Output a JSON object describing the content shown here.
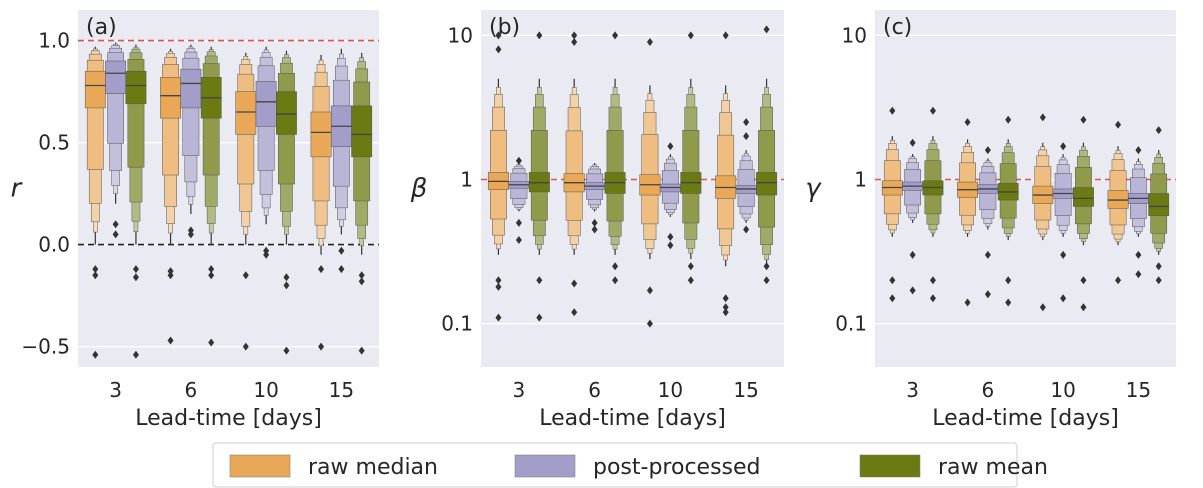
{
  "chart_data": [
    {
      "type": "boxen",
      "panel_label": "(a)",
      "ylabel": "r",
      "xlabel": "Lead-time [days]",
      "categories": [
        "3",
        "6",
        "10",
        "15"
      ],
      "yscale": "linear",
      "ylim": [
        -0.6,
        1.15
      ],
      "yticks": [
        -0.5,
        0.0,
        0.5,
        1.0
      ],
      "ytick_labels": [
        "−0.5",
        "0.0",
        "0.5",
        "1.0"
      ],
      "reference_lines": [
        {
          "value": 1.0,
          "color": "#d9534f",
          "style": "dashed"
        },
        {
          "value": 0.0,
          "color": "#222222",
          "style": "dashed"
        }
      ],
      "series": [
        {
          "name": "raw median",
          "color": "#e8a857",
          "medians": [
            0.78,
            0.73,
            0.65,
            0.55
          ],
          "q1": [
            0.67,
            0.62,
            0.54,
            0.43
          ],
          "q3": [
            0.85,
            0.82,
            0.75,
            0.65
          ],
          "whisker_low": [
            0.0,
            0.0,
            0.0,
            -0.05
          ],
          "whisker_high": [
            0.97,
            0.96,
            0.94,
            0.93
          ],
          "outliers": [
            [
              -0.54,
              -0.12,
              -0.15
            ],
            [
              -0.47,
              -0.13,
              -0.15
            ],
            [
              -0.5,
              -0.15
            ],
            [
              -0.5,
              -0.12
            ]
          ]
        },
        {
          "name": "post-processed",
          "color": "#a29dc9",
          "medians": [
            0.84,
            0.79,
            0.7,
            0.58
          ],
          "q1": [
            0.74,
            0.67,
            0.58,
            0.48
          ],
          "q3": [
            0.9,
            0.86,
            0.8,
            0.68
          ],
          "whisker_low": [
            0.2,
            0.15,
            0.1,
            0.05
          ],
          "whisker_high": [
            0.99,
            0.98,
            0.97,
            0.96
          ],
          "outliers": [
            [
              0.05,
              0.1
            ],
            [
              0.05,
              0.07
            ],
            [
              -0.03,
              -0.05
            ],
            [
              -0.12,
              -0.03
            ]
          ]
        },
        {
          "name": "raw mean",
          "color": "#6b7a12",
          "medians": [
            0.78,
            0.72,
            0.64,
            0.54
          ],
          "q1": [
            0.69,
            0.62,
            0.54,
            0.43
          ],
          "q3": [
            0.85,
            0.82,
            0.75,
            0.68
          ],
          "whisker_low": [
            0.0,
            0.0,
            0.0,
            -0.05
          ],
          "whisker_high": [
            0.98,
            0.97,
            0.95,
            0.94
          ],
          "outliers": [
            [
              -0.54,
              -0.12,
              -0.16
            ],
            [
              -0.48,
              -0.12,
              -0.15
            ],
            [
              -0.52,
              -0.16,
              -0.2
            ],
            [
              -0.52,
              -0.15,
              -0.18
            ]
          ]
        }
      ]
    },
    {
      "type": "boxen",
      "panel_label": "(b)",
      "ylabel": "β",
      "xlabel": "Lead-time [days]",
      "categories": [
        "3",
        "6",
        "10",
        "15"
      ],
      "yscale": "log",
      "ylim": [
        0.05,
        15
      ],
      "yticks": [
        0.1,
        1,
        10
      ],
      "ytick_labels": [
        "0.1",
        "1",
        "10"
      ],
      "reference_lines": [
        {
          "value": 1,
          "color": "#d9534f",
          "style": "dashed"
        }
      ],
      "series": [
        {
          "name": "raw median",
          "color": "#e8a857",
          "medians": [
            0.97,
            0.95,
            0.92,
            0.88
          ],
          "q1": [
            0.85,
            0.82,
            0.78,
            0.74
          ],
          "q3": [
            1.12,
            1.1,
            1.08,
            1.06
          ],
          "whisker_low": [
            0.3,
            0.3,
            0.28,
            0.25
          ],
          "whisker_high": [
            5.0,
            5.0,
            4.5,
            4.5
          ],
          "outliers": [
            [
              0.11,
              0.18,
              0.2,
              8.0,
              10.0
            ],
            [
              0.12,
              0.19,
              9.0,
              10.0
            ],
            [
              0.1,
              0.17,
              9.0
            ],
            [
              0.12,
              0.15,
              0.13,
              10.0
            ]
          ]
        },
        {
          "name": "post-processed",
          "color": "#a29dc9",
          "medians": [
            0.92,
            0.9,
            0.88,
            0.86
          ],
          "q1": [
            0.87,
            0.85,
            0.82,
            0.8
          ],
          "q3": [
            0.97,
            0.95,
            0.93,
            0.91
          ],
          "whisker_low": [
            0.6,
            0.6,
            0.55,
            0.5
          ],
          "whisker_high": [
            1.3,
            1.3,
            1.5,
            1.6
          ],
          "outliers": [
            [
              0.38,
              0.5,
              1.35
            ],
            [
              0.45,
              0.5
            ],
            [
              0.35,
              0.4,
              1.7
            ],
            [
              0.45,
              2.0,
              2.5
            ]
          ]
        },
        {
          "name": "raw mean",
          "color": "#6b7a12",
          "medians": [
            0.95,
            0.95,
            0.95,
            0.95
          ],
          "q1": [
            0.82,
            0.8,
            0.8,
            0.78
          ],
          "q3": [
            1.12,
            1.12,
            1.12,
            1.12
          ],
          "whisker_low": [
            0.3,
            0.3,
            0.28,
            0.25
          ],
          "whisker_high": [
            5.0,
            5.0,
            5.0,
            5.0
          ],
          "outliers": [
            [
              0.11,
              0.2,
              10.0
            ],
            [
              0.2,
              0.25,
              10.0
            ],
            [
              0.2,
              0.25,
              10.0
            ],
            [
              0.2,
              0.25,
              11.0
            ]
          ]
        }
      ]
    },
    {
      "type": "boxen",
      "panel_label": "(c)",
      "ylabel": "γ",
      "xlabel": "Lead-time [days]",
      "categories": [
        "3",
        "6",
        "10",
        "15"
      ],
      "yscale": "log",
      "ylim": [
        0.05,
        15
      ],
      "yticks": [
        0.1,
        1,
        10
      ],
      "ytick_labels": [
        "0.1",
        "1",
        "10"
      ],
      "reference_lines": [
        {
          "value": 1,
          "color": "#d9534f",
          "style": "dashed"
        }
      ],
      "series": [
        {
          "name": "raw median",
          "color": "#e8a857",
          "medians": [
            0.88,
            0.85,
            0.78,
            0.72
          ],
          "q1": [
            0.78,
            0.75,
            0.68,
            0.63
          ],
          "q3": [
            0.98,
            0.96,
            0.9,
            0.84
          ],
          "whisker_low": [
            0.4,
            0.4,
            0.38,
            0.35
          ],
          "whisker_high": [
            2.0,
            1.9,
            1.8,
            1.7
          ],
          "outliers": [
            [
              0.15,
              0.2,
              3.0
            ],
            [
              0.14,
              2.5
            ],
            [
              0.13,
              2.7
            ],
            [
              0.2,
              2.4
            ]
          ]
        },
        {
          "name": "post-processed",
          "color": "#a29dc9",
          "medians": [
            0.9,
            0.86,
            0.8,
            0.74
          ],
          "q1": [
            0.84,
            0.8,
            0.74,
            0.68
          ],
          "q3": [
            0.96,
            0.92,
            0.86,
            0.8
          ],
          "whisker_low": [
            0.5,
            0.45,
            0.4,
            0.4
          ],
          "whisker_high": [
            1.5,
            1.4,
            1.5,
            1.4
          ],
          "outliers": [
            [
              0.17,
              0.3,
              1.8
            ],
            [
              0.16,
              0.3,
              1.6
            ],
            [
              0.15,
              0.3,
              1.7
            ],
            [
              0.22,
              0.3,
              1.6
            ]
          ]
        },
        {
          "name": "raw mean",
          "color": "#6b7a12",
          "medians": [
            0.88,
            0.82,
            0.74,
            0.65
          ],
          "q1": [
            0.78,
            0.72,
            0.65,
            0.56
          ],
          "q3": [
            0.98,
            0.94,
            0.88,
            0.8
          ],
          "whisker_low": [
            0.4,
            0.38,
            0.35,
            0.3
          ],
          "whisker_high": [
            2.0,
            1.9,
            1.8,
            1.6
          ],
          "outliers": [
            [
              0.15,
              0.2,
              3.0
            ],
            [
              0.14,
              0.2,
              2.6
            ],
            [
              0.13,
              0.2,
              2.6
            ],
            [
              0.2,
              0.25,
              2.2
            ]
          ]
        }
      ]
    }
  ],
  "legend": {
    "placement": "bottom-center",
    "items": [
      {
        "label": "raw median",
        "color": "#e8a857"
      },
      {
        "label": "post-processed",
        "color": "#a29dc9"
      },
      {
        "label": "raw mean",
        "color": "#6b7a12"
      }
    ]
  }
}
